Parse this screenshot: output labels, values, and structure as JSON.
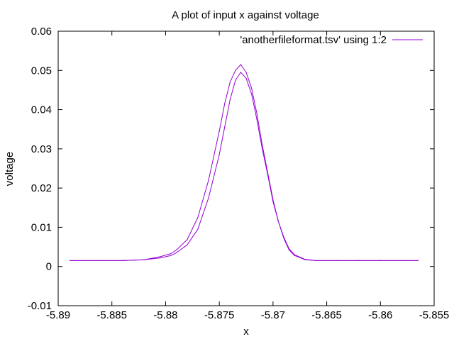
{
  "chart_data": {
    "type": "line",
    "title": "A plot of input x against voltage",
    "xlabel": "x",
    "ylabel": "voltage",
    "xlim": [
      -5.89,
      -5.855
    ],
    "ylim": [
      -0.01,
      0.06
    ],
    "x_ticks": [
      "-5.89",
      "-5.885",
      "-5.88",
      "-5.875",
      "-5.87",
      "-5.865",
      "-5.86",
      "-5.855"
    ],
    "y_ticks": [
      "-0.01",
      "0",
      "0.01",
      "0.02",
      "0.03",
      "0.04",
      "0.05",
      "0.06"
    ],
    "grid": false,
    "legend_position": "top-right",
    "series": [
      {
        "name": "'anotherfileformat.tsv' using 1:2",
        "color": "#9400d3",
        "x": [
          -5.8889,
          -5.888,
          -5.886,
          -5.884,
          -5.882,
          -5.8805,
          -5.8795,
          -5.879,
          -5.878,
          -5.877,
          -5.876,
          -5.875,
          -5.8745,
          -5.874,
          -5.8735,
          -5.873,
          -5.8725,
          -5.872,
          -5.8715,
          -5.871,
          -5.8705,
          -5.87,
          -5.8695,
          -5.869,
          -5.8685,
          -5.868,
          -5.867,
          -5.866,
          -5.864,
          -5.862,
          -5.86,
          -5.858,
          -5.8565
        ],
        "y": [
          0.0015,
          0.0015,
          0.0015,
          0.0015,
          0.0017,
          0.0022,
          0.0028,
          0.0035,
          0.0055,
          0.0095,
          0.0175,
          0.0285,
          0.0355,
          0.0425,
          0.0475,
          0.0495,
          0.048,
          0.044,
          0.0375,
          0.03,
          0.0235,
          0.0165,
          0.0115,
          0.0075,
          0.0045,
          0.003,
          0.0018,
          0.0015,
          0.0015,
          0.0015,
          0.0015,
          0.0015,
          0.0015
        ]
      },
      {
        "name": "",
        "color": "#9400d3",
        "x": [
          -5.8889,
          -5.888,
          -5.886,
          -5.884,
          -5.882,
          -5.8805,
          -5.8795,
          -5.879,
          -5.878,
          -5.877,
          -5.876,
          -5.875,
          -5.8745,
          -5.874,
          -5.8735,
          -5.873,
          -5.8725,
          -5.872,
          -5.8715,
          -5.871,
          -5.8705,
          -5.87,
          -5.8695,
          -5.869,
          -5.8685,
          -5.868,
          -5.867,
          -5.866,
          -5.864,
          -5.862,
          -5.86,
          -5.858,
          -5.8565
        ],
        "y": [
          0.0015,
          0.0015,
          0.0015,
          0.0015,
          0.0017,
          0.0025,
          0.0033,
          0.0042,
          0.0068,
          0.0125,
          0.022,
          0.0345,
          0.0415,
          0.047,
          0.05,
          0.0515,
          0.0495,
          0.0455,
          0.039,
          0.031,
          0.024,
          0.017,
          0.0115,
          0.0072,
          0.0042,
          0.0028,
          0.0017,
          0.0015,
          0.0015,
          0.0015,
          0.0015,
          0.0015,
          0.0015
        ]
      }
    ]
  }
}
